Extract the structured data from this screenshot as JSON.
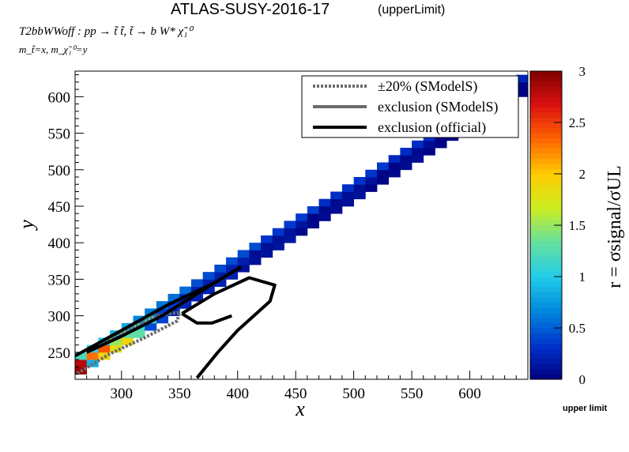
{
  "header": {
    "title": "ATLAS-SUSY-2016-17",
    "subtitle": "(upperLimit)",
    "process": "T2bbWWoff : pp → t̃ t̃, t̃ → b W* χ̃₁⁰",
    "mass_line": "m_t̃=x, m_χ̃₁⁰=y"
  },
  "footer": {
    "label": "upper limit"
  },
  "chart_data": {
    "type": "heatmap",
    "xlabel": "x",
    "ylabel": "y",
    "zlabel": "r = σsignal/σUL",
    "xlim": [
      260,
      650
    ],
    "ylim": [
      213,
      635
    ],
    "zlim": [
      0,
      3
    ],
    "x_ticks": [
      "300",
      "350",
      "400",
      "450",
      "500",
      "550",
      "600"
    ],
    "y_ticks": [
      "250",
      "300",
      "350",
      "400",
      "450",
      "500",
      "550",
      "600"
    ],
    "z_ticks": [
      "0",
      "0.5",
      "1",
      "1.5",
      "2",
      "2.5",
      "3"
    ],
    "legend": {
      "position": "top-right",
      "entries": [
        {
          "label": "±20% (SModelS)",
          "style": "dotted",
          "color": "#6b6b6b"
        },
        {
          "label": "exclusion (SModelS)",
          "style": "solid",
          "color": "#6b6b6b"
        },
        {
          "label": "exclusion (official)",
          "style": "solid",
          "color": "#000000"
        }
      ]
    },
    "grid": false,
    "band": {
      "dm_lower": 20,
      "dm_upper": 45,
      "cell": 10
    },
    "colormap": [
      "#00007f",
      "#0033cc",
      "#0088dd",
      "#22cce8",
      "#66e0a0",
      "#ccee22",
      "#ffcc00",
      "#ff6600",
      "#dd1111",
      "#7f0000"
    ],
    "hotspots": [
      {
        "x": 265,
        "y": 235,
        "r": 2.8
      },
      {
        "x": 265,
        "y": 225,
        "r": 2.9
      },
      {
        "x": 275,
        "y": 245,
        "r": 2.3
      },
      {
        "x": 285,
        "y": 255,
        "r": 2.4
      },
      {
        "x": 285,
        "y": 245,
        "r": 1.9
      },
      {
        "x": 295,
        "y": 265,
        "r": 1.5
      },
      {
        "x": 295,
        "y": 255,
        "r": 1.8
      },
      {
        "x": 305,
        "y": 265,
        "r": 1.9
      },
      {
        "x": 305,
        "y": 275,
        "r": 1.3
      },
      {
        "x": 315,
        "y": 285,
        "r": 1.2
      },
      {
        "x": 325,
        "y": 295,
        "r": 1.1
      },
      {
        "x": 315,
        "y": 275,
        "r": 1.3
      }
    ],
    "official_exclusion": [
      [
        [
          260,
          245
        ],
        [
          300,
          280
        ],
        [
          340,
          315
        ],
        [
          380,
          345
        ],
        [
          402,
          366
        ],
        [
          385,
          350
        ],
        [
          360,
          325
        ],
        [
          335,
          300
        ],
        [
          300,
          272
        ],
        [
          270,
          250
        ]
      ],
      [
        [
          352,
          303
        ],
        [
          380,
          330
        ],
        [
          410,
          352
        ],
        [
          432,
          342
        ],
        [
          428,
          320
        ],
        [
          400,
          280
        ],
        [
          383,
          250
        ],
        [
          365,
          215
        ]
      ],
      [
        [
          352,
          303
        ],
        [
          365,
          290
        ],
        [
          378,
          290
        ],
        [
          395,
          300
        ]
      ]
    ],
    "smodels_exclusion": [
      [
        [
          262,
          221
        ],
        [
          290,
          248
        ],
        [
          320,
          270
        ],
        [
          348,
          293
        ],
        [
          350,
          305
        ],
        [
          330,
          300
        ],
        [
          300,
          275
        ],
        [
          270,
          250
        ]
      ]
    ]
  }
}
